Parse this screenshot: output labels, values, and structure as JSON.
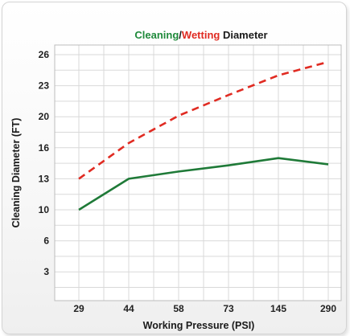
{
  "chart_data": {
    "type": "line",
    "title_parts": [
      {
        "text": "Cleaning",
        "color": "#1f8a3b"
      },
      {
        "text": "/",
        "color": "#1a1a1a"
      },
      {
        "text": "Wetting",
        "color": "#e02b22"
      },
      {
        "text": " Diameter",
        "color": "#1a1a1a"
      }
    ],
    "xlabel": "Working Pressure (PSI)",
    "ylabel": "Cleaning Diameter (FT)",
    "categories": [
      "29",
      "44",
      "58",
      "73",
      "145",
      "290"
    ],
    "y_ticks": [
      "26",
      "23",
      "20",
      "16",
      "13",
      "10",
      "6",
      "3"
    ],
    "ylim": [
      0,
      27
    ],
    "grid": true,
    "series": [
      {
        "name": "Wetting",
        "color": "#e02b22",
        "dashed": true,
        "values": [
          13.0,
          16.6,
          20.1,
          22.1,
          24.0,
          25.3
        ]
      },
      {
        "name": "Cleaning",
        "color": "#1f7a38",
        "dashed": false,
        "values": [
          10.0,
          13.0,
          13.7,
          14.3,
          15.0,
          14.4
        ]
      }
    ]
  }
}
